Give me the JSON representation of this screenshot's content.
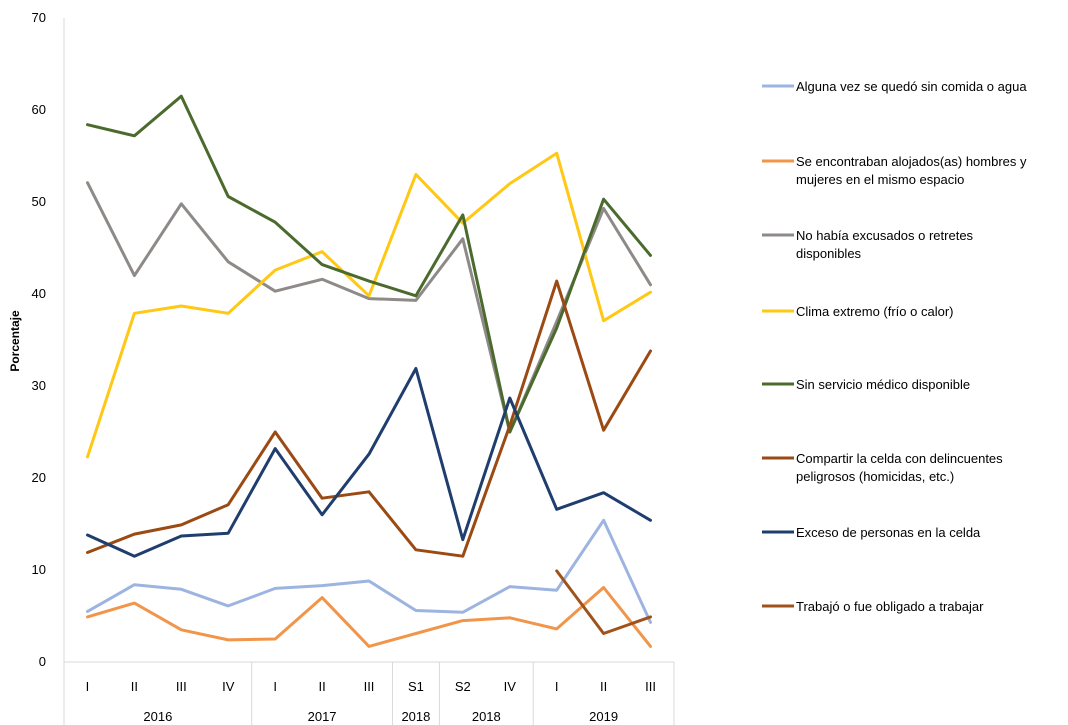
{
  "chart_data": {
    "type": "line",
    "ylabel": "Porcentaje",
    "ylim": [
      0,
      70
    ],
    "yticks": [
      0,
      10,
      20,
      30,
      40,
      50,
      60,
      70
    ],
    "categories": [
      "I",
      "II",
      "III",
      "IV",
      "I",
      "II",
      "III",
      "S1",
      "S2",
      "IV",
      "I",
      "II",
      "III"
    ],
    "groups": [
      {
        "label": "2016",
        "count": 4
      },
      {
        "label": "2017",
        "count": 3
      },
      {
        "label": "2018",
        "count": 1
      },
      {
        "label": "2018",
        "count": 2
      },
      {
        "label": "2019",
        "count": 3
      }
    ],
    "grid": false,
    "legend_position": "right",
    "series": [
      {
        "name": "Alguna vez se quedó sin comida o agua",
        "color": "#9DB4E0",
        "values": [
          5.5,
          8.4,
          7.9,
          6.1,
          8.0,
          8.3,
          8.8,
          5.6,
          5.4,
          8.2,
          7.8,
          15.4,
          4.3
        ]
      },
      {
        "name": "Se encontraban alojados(as) hombres y mujeres en el mismo espacio",
        "color": "#F0954A",
        "values": [
          4.9,
          6.4,
          3.5,
          2.4,
          2.5,
          7.0,
          1.7,
          3.1,
          4.5,
          4.8,
          3.6,
          8.1,
          1.7
        ]
      },
      {
        "name": "No había excusados o retretes disponibles",
        "color": "#8E8A88",
        "values": [
          52.1,
          42.0,
          49.8,
          43.5,
          40.3,
          41.6,
          39.5,
          39.3,
          46.0,
          25.0,
          37.0,
          49.3,
          41.0
        ]
      },
      {
        "name": "Clima extremo (frío o calor)",
        "color": "#FFC814",
        "values": [
          22.3,
          37.9,
          38.7,
          37.9,
          42.6,
          44.6,
          39.8,
          53.0,
          47.7,
          52.0,
          55.3,
          37.1,
          40.2
        ]
      },
      {
        "name": "Sin servicio médico disponible",
        "color": "#4B6B2E",
        "values": [
          58.4,
          57.2,
          61.5,
          50.6,
          47.8,
          43.2,
          41.4,
          39.8,
          48.6,
          25.0,
          36.3,
          50.3,
          44.2
        ]
      },
      {
        "name": "Compartir la celda con delincuentes peligrosos (homicidas, etc.)",
        "color": "#9A4A12",
        "values": [
          11.9,
          13.9,
          14.9,
          17.1,
          25.0,
          17.8,
          18.5,
          12.2,
          11.5,
          25.7,
          41.4,
          25.2,
          33.8
        ]
      },
      {
        "name": "Exceso de personas en la celda",
        "color": "#1F3E6E",
        "values": [
          13.8,
          11.5,
          13.7,
          14.0,
          23.2,
          16.0,
          22.6,
          31.9,
          13.3,
          28.7,
          16.6,
          18.4,
          15.4
        ]
      },
      {
        "name": "Trabajó o fue obligado a trabajar",
        "color": "#A0521B",
        "values": [
          null,
          null,
          null,
          null,
          null,
          null,
          null,
          null,
          null,
          null,
          9.9,
          3.1,
          4.9
        ]
      }
    ]
  }
}
